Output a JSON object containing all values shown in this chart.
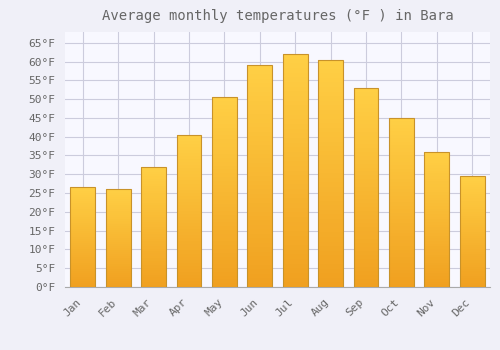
{
  "title": "Average monthly temperatures (°F ) in Bara",
  "months": [
    "Jan",
    "Feb",
    "Mar",
    "Apr",
    "May",
    "Jun",
    "Jul",
    "Aug",
    "Sep",
    "Oct",
    "Nov",
    "Dec"
  ],
  "values": [
    26.5,
    26.0,
    32.0,
    40.5,
    50.5,
    59.0,
    62.0,
    60.5,
    53.0,
    45.0,
    36.0,
    29.5
  ],
  "bar_color_top": "#FFD045",
  "bar_color_bottom": "#F0A020",
  "bar_edge_color": "#C8922A",
  "background_color": "#F0F0F8",
  "plot_background_color": "#F8F8FF",
  "grid_color": "#CCCCDD",
  "text_color": "#666666",
  "ylim": [
    0,
    68
  ],
  "yticks": [
    0,
    5,
    10,
    15,
    20,
    25,
    30,
    35,
    40,
    45,
    50,
    55,
    60,
    65
  ],
  "title_fontsize": 10,
  "tick_fontsize": 8,
  "bar_width": 0.7
}
